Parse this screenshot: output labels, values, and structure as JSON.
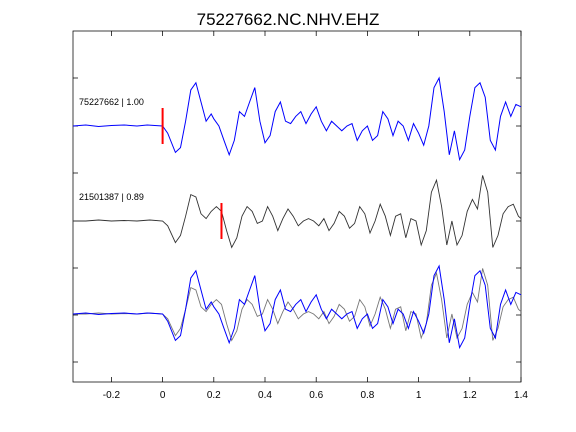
{
  "chart_data": {
    "type": "line",
    "title": "75227662.NC.NHV.EHZ",
    "xlabel": "",
    "ylabel": "",
    "xlim": [
      -0.35,
      1.4
    ],
    "xticks": [
      -0.2,
      0,
      0.2,
      0.4,
      0.6,
      0.8,
      1,
      1.2,
      1.4
    ],
    "xtick_labels": [
      "-0.2",
      "0",
      "0.2",
      "0.4",
      "0.6",
      "0.8",
      "1",
      "1.2",
      "1.4"
    ],
    "grid": false,
    "traces": [
      {
        "label": "75227662 | 1.00",
        "color": "#0000ff",
        "pick_time": 0.0,
        "pick_color": "#ff0000",
        "waveform": [
          [
            -0.35,
            0.0
          ],
          [
            -0.3,
            0.02
          ],
          [
            -0.25,
            -0.01
          ],
          [
            -0.2,
            0.01
          ],
          [
            -0.15,
            0.02
          ],
          [
            -0.1,
            0.0
          ],
          [
            -0.06,
            0.02
          ],
          [
            -0.03,
            0.01
          ],
          [
            0.0,
            0.0
          ],
          [
            0.02,
            -0.15
          ],
          [
            0.05,
            -0.55
          ],
          [
            0.07,
            -0.45
          ],
          [
            0.09,
            0.1
          ],
          [
            0.11,
            0.75
          ],
          [
            0.13,
            0.9
          ],
          [
            0.15,
            0.5
          ],
          [
            0.17,
            0.1
          ],
          [
            0.19,
            0.25
          ],
          [
            0.2,
            0.15
          ],
          [
            0.22,
            0.0
          ],
          [
            0.24,
            -0.3
          ],
          [
            0.26,
            -0.6
          ],
          [
            0.28,
            -0.3
          ],
          [
            0.3,
            0.3
          ],
          [
            0.32,
            0.2
          ],
          [
            0.34,
            0.5
          ],
          [
            0.36,
            0.8
          ],
          [
            0.38,
            0.1
          ],
          [
            0.4,
            -0.35
          ],
          [
            0.42,
            -0.2
          ],
          [
            0.44,
            0.3
          ],
          [
            0.46,
            0.5
          ],
          [
            0.48,
            0.1
          ],
          [
            0.5,
            0.05
          ],
          [
            0.52,
            0.2
          ],
          [
            0.54,
            0.3
          ],
          [
            0.56,
            0.05
          ],
          [
            0.58,
            0.25
          ],
          [
            0.6,
            0.4
          ],
          [
            0.62,
            0.1
          ],
          [
            0.64,
            -0.1
          ],
          [
            0.66,
            0.1
          ],
          [
            0.68,
            0.0
          ],
          [
            0.7,
            -0.1
          ],
          [
            0.72,
            0.0
          ],
          [
            0.74,
            0.05
          ],
          [
            0.76,
            -0.3
          ],
          [
            0.78,
            -0.1
          ],
          [
            0.8,
            0.0
          ],
          [
            0.82,
            -0.3
          ],
          [
            0.84,
            -0.2
          ],
          [
            0.86,
            0.3
          ],
          [
            0.88,
            0.15
          ],
          [
            0.9,
            -0.2
          ],
          [
            0.92,
            0.1
          ],
          [
            0.94,
            0.0
          ],
          [
            0.96,
            -0.3
          ],
          [
            0.98,
            0.05
          ],
          [
            1.0,
            -0.15
          ],
          [
            1.02,
            -0.4
          ],
          [
            1.04,
            0.0
          ],
          [
            1.06,
            0.8
          ],
          [
            1.08,
            1.0
          ],
          [
            1.1,
            0.3
          ],
          [
            1.12,
            -0.6
          ],
          [
            1.14,
            -0.1
          ],
          [
            1.16,
            -0.7
          ],
          [
            1.18,
            -0.5
          ],
          [
            1.2,
            0.2
          ],
          [
            1.22,
            0.8
          ],
          [
            1.24,
            0.9
          ],
          [
            1.26,
            0.6
          ],
          [
            1.28,
            -0.3
          ],
          [
            1.3,
            -0.5
          ],
          [
            1.32,
            0.2
          ],
          [
            1.34,
            0.5
          ],
          [
            1.36,
            0.2
          ],
          [
            1.38,
            0.45
          ],
          [
            1.4,
            0.4
          ]
        ]
      },
      {
        "label": "21501387 | 0.89",
        "color": "#333333",
        "pick_time": 0.23,
        "pick_color": "#ff0000",
        "waveform": [
          [
            -0.35,
            0.0
          ],
          [
            -0.3,
            0.0
          ],
          [
            -0.25,
            0.02
          ],
          [
            -0.2,
            0.0
          ],
          [
            -0.15,
            0.01
          ],
          [
            -0.1,
            0.0
          ],
          [
            -0.05,
            0.02
          ],
          [
            0.0,
            0.0
          ],
          [
            0.02,
            -0.1
          ],
          [
            0.05,
            -0.45
          ],
          [
            0.07,
            -0.3
          ],
          [
            0.09,
            0.1
          ],
          [
            0.11,
            0.55
          ],
          [
            0.13,
            0.5
          ],
          [
            0.15,
            0.15
          ],
          [
            0.17,
            0.05
          ],
          [
            0.19,
            0.2
          ],
          [
            0.21,
            0.3
          ],
          [
            0.23,
            0.2
          ],
          [
            0.25,
            -0.2
          ],
          [
            0.27,
            -0.55
          ],
          [
            0.29,
            -0.35
          ],
          [
            0.31,
            0.1
          ],
          [
            0.33,
            0.3
          ],
          [
            0.35,
            0.2
          ],
          [
            0.37,
            -0.05
          ],
          [
            0.39,
            0.0
          ],
          [
            0.41,
            0.3
          ],
          [
            0.43,
            0.1
          ],
          [
            0.45,
            -0.2
          ],
          [
            0.47,
            0.05
          ],
          [
            0.49,
            0.25
          ],
          [
            0.51,
            0.1
          ],
          [
            0.53,
            -0.1
          ],
          [
            0.55,
            0.0
          ],
          [
            0.57,
            0.05
          ],
          [
            0.59,
            0.0
          ],
          [
            0.61,
            -0.1
          ],
          [
            0.63,
            0.05
          ],
          [
            0.65,
            -0.2
          ],
          [
            0.67,
            -0.05
          ],
          [
            0.69,
            0.2
          ],
          [
            0.71,
            0.1
          ],
          [
            0.73,
            -0.15
          ],
          [
            0.75,
            -0.05
          ],
          [
            0.77,
            0.3
          ],
          [
            0.79,
            0.15
          ],
          [
            0.81,
            -0.25
          ],
          [
            0.83,
            0.0
          ],
          [
            0.85,
            0.35
          ],
          [
            0.87,
            0.1
          ],
          [
            0.89,
            -0.3
          ],
          [
            0.91,
            0.1
          ],
          [
            0.93,
            0.15
          ],
          [
            0.95,
            -0.35
          ],
          [
            0.97,
            0.05
          ],
          [
            0.99,
            0.0
          ],
          [
            1.01,
            -0.5
          ],
          [
            1.03,
            -0.2
          ],
          [
            1.05,
            0.6
          ],
          [
            1.07,
            0.85
          ],
          [
            1.09,
            0.3
          ],
          [
            1.11,
            -0.5
          ],
          [
            1.13,
            0.0
          ],
          [
            1.15,
            -0.5
          ],
          [
            1.17,
            -0.3
          ],
          [
            1.19,
            0.2
          ],
          [
            1.21,
            0.45
          ],
          [
            1.23,
            0.25
          ],
          [
            1.25,
            0.95
          ],
          [
            1.27,
            0.6
          ],
          [
            1.29,
            -0.55
          ],
          [
            1.31,
            -0.3
          ],
          [
            1.33,
            0.15
          ],
          [
            1.35,
            0.3
          ],
          [
            1.37,
            0.35
          ],
          [
            1.39,
            0.1
          ],
          [
            1.4,
            0.05
          ]
        ]
      }
    ]
  }
}
